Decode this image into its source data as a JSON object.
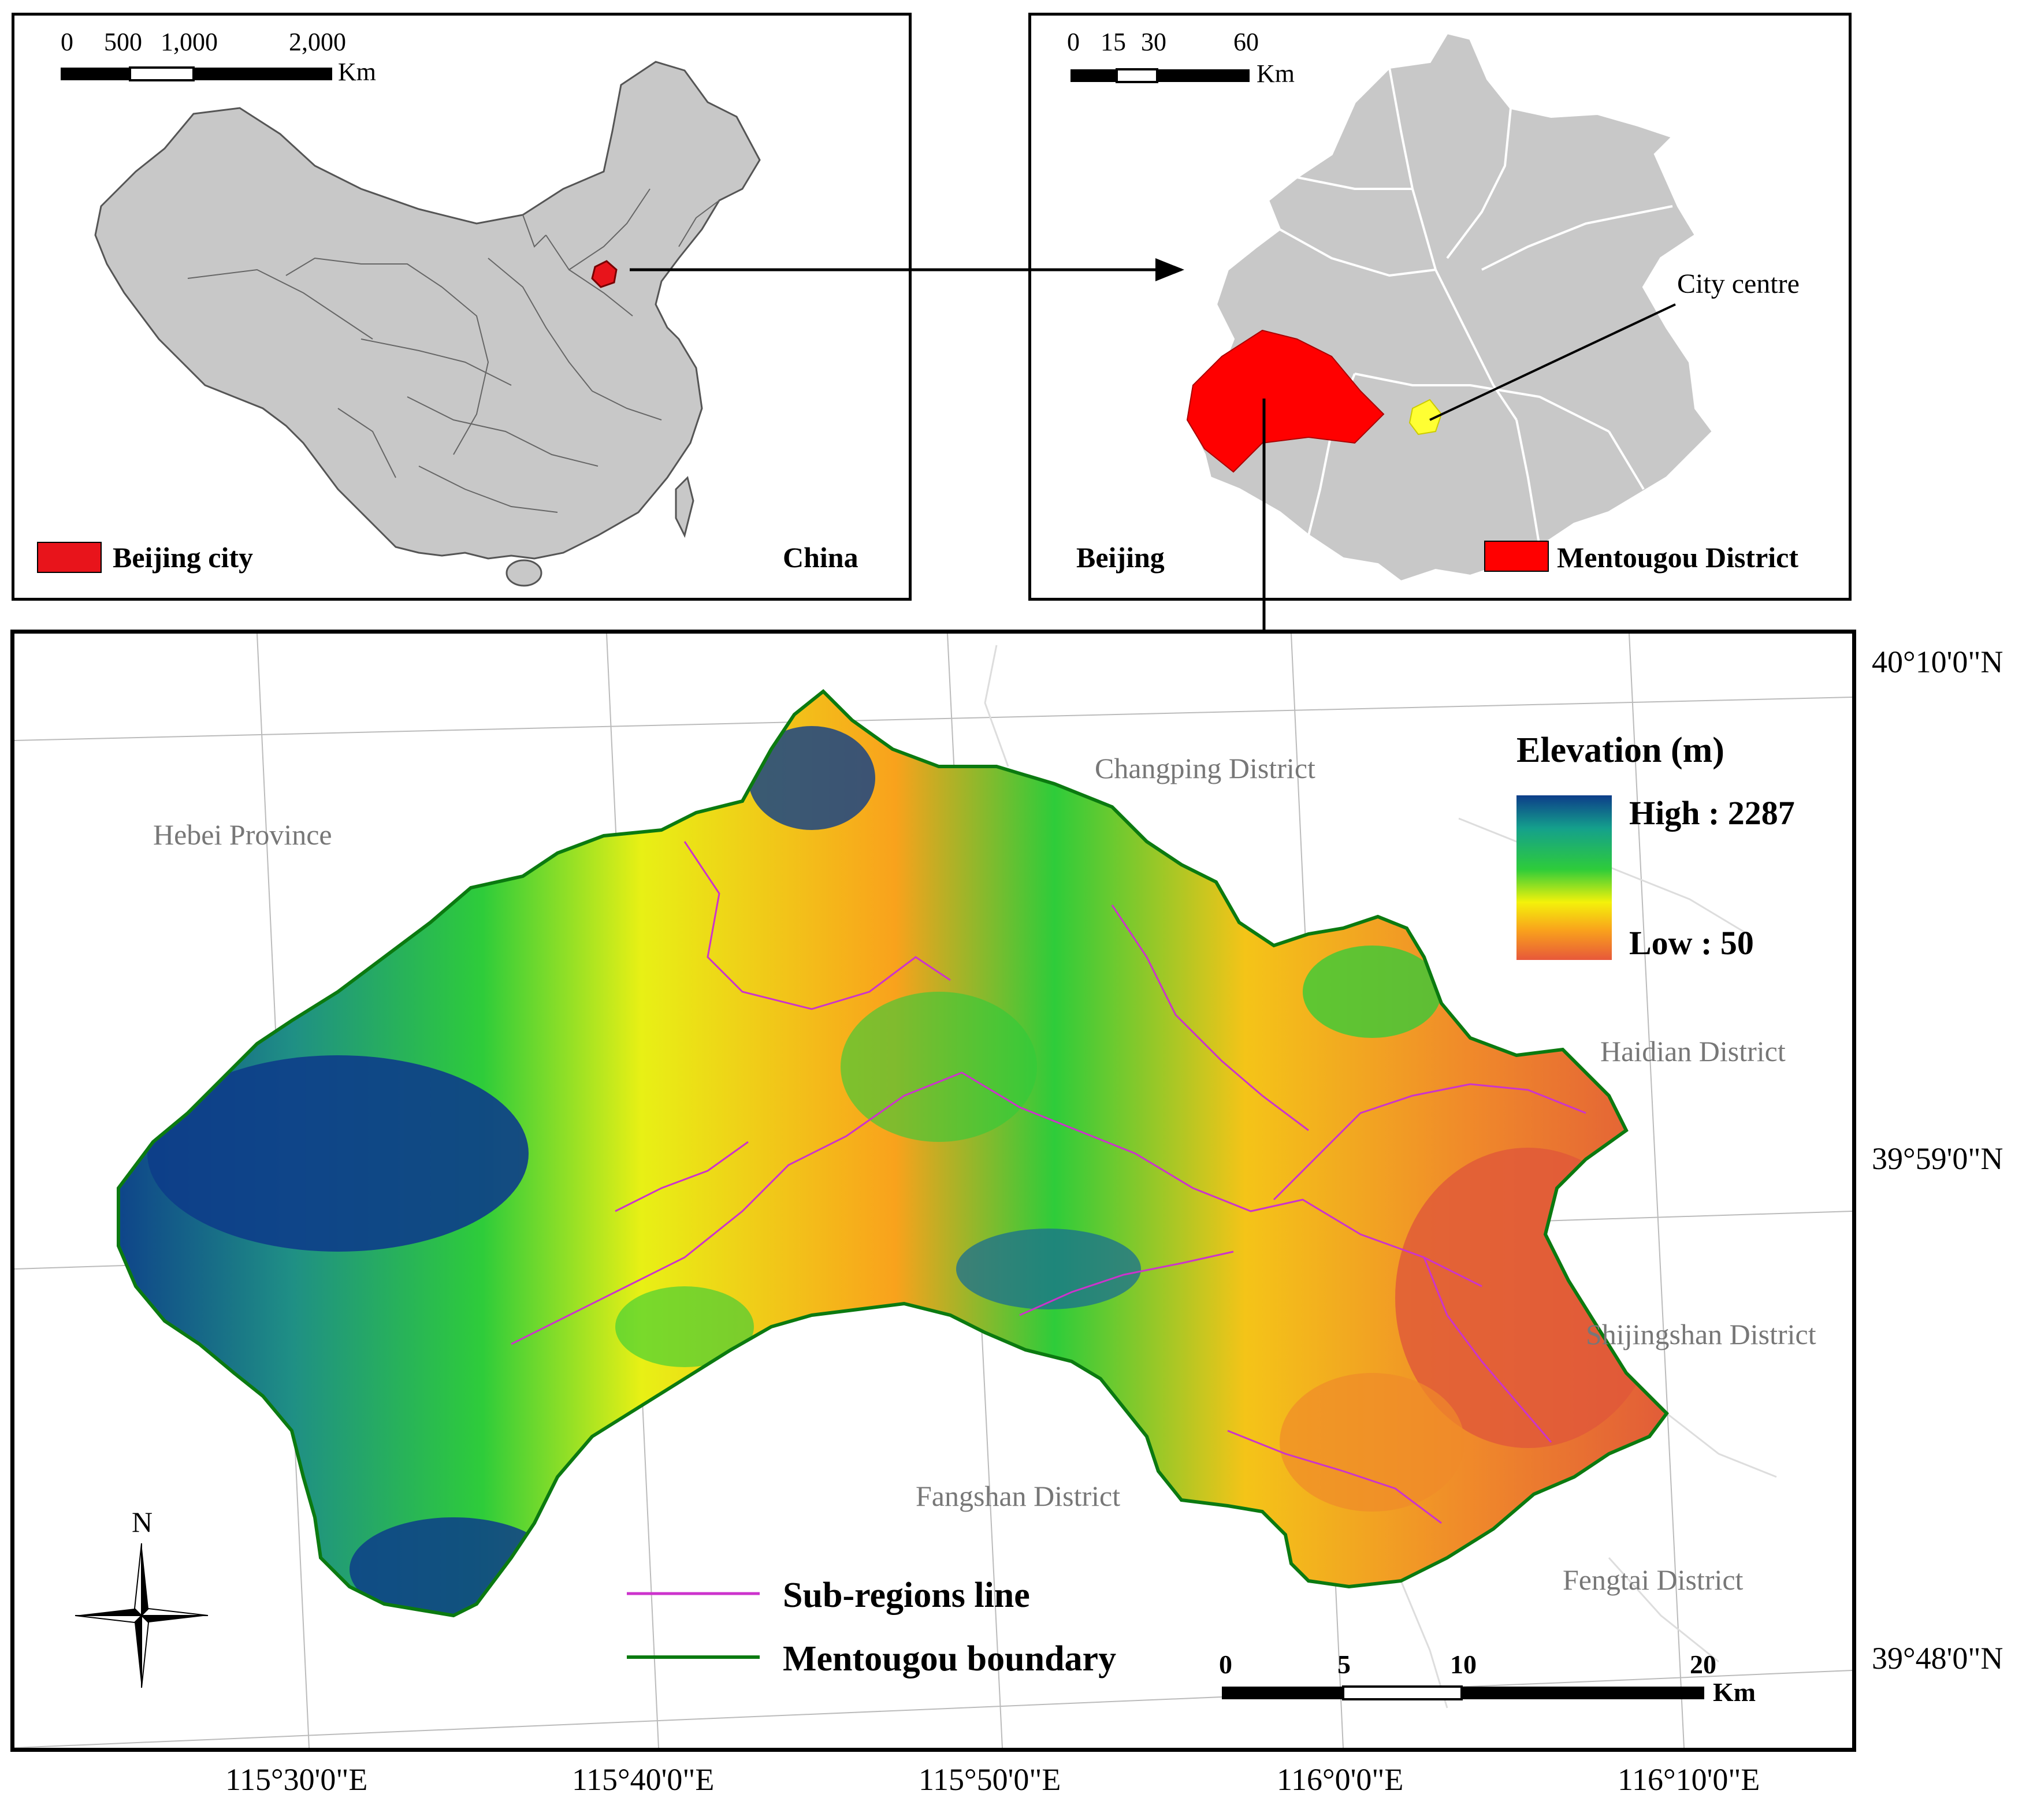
{
  "china_inset": {
    "name": "China",
    "legend_label": "Beijing city",
    "legend_color": "#e8141b",
    "scale_ticks": [
      "0",
      "500",
      "1,000",
      "2,000"
    ],
    "scale_unit": "Km"
  },
  "beijing_inset": {
    "name": "Beijing",
    "legend_label": "Mentougou District",
    "legend_color": "#ff0000",
    "city_centre_label": "City centre",
    "city_centre_color": "#ffff33",
    "scale_ticks": [
      "0",
      "15",
      "30",
      "60"
    ],
    "scale_unit": "Km"
  },
  "main_map": {
    "neighbors": [
      "Hebei Province",
      "Changping District",
      "Haidian District",
      "Shijingshan District",
      "Fangshan District",
      "Fengtai District"
    ],
    "elevation_legend": {
      "title": "Elevation (m)",
      "high_label": "High : 2287",
      "low_label": "Low : 50",
      "colors": [
        "#0d3d8a",
        "#14a08c",
        "#2ecc3a",
        "#f4f20a",
        "#f9a21c",
        "#e7583a"
      ]
    },
    "line_legend": {
      "subregions_label": "Sub-regions line",
      "subregions_color": "#cc33cc",
      "boundary_label": "Mentougou boundary",
      "boundary_color": "#0b7a10"
    },
    "scale_ticks": [
      "0",
      "5",
      "10",
      "20"
    ],
    "scale_unit": "Km",
    "north_label": "N",
    "lat_labels": [
      "40°10'0\"N",
      "39°59'0\"N",
      "39°48'0\"N"
    ],
    "lon_labels": [
      "115°30'0\"E",
      "115°40'0\"E",
      "115°50'0\"E",
      "116°0'0\"E",
      "116°10'0\"E"
    ]
  }
}
